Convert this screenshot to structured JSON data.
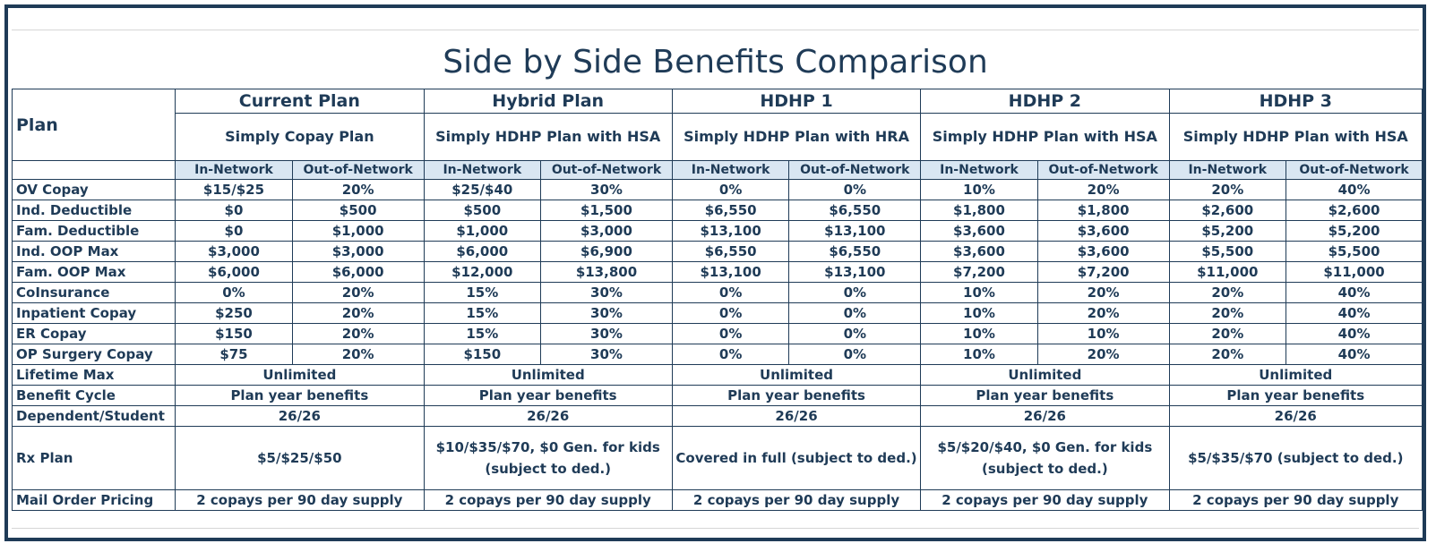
{
  "title": "Side by Side Benefits Comparison",
  "plan_label": "Plan",
  "plans": [
    {
      "name": "Current Plan",
      "sub": "Simply Copay Plan"
    },
    {
      "name": "Hybrid Plan",
      "sub": "Simply HDHP Plan with HSA"
    },
    {
      "name": "HDHP 1",
      "sub": "Simply HDHP Plan with HRA"
    },
    {
      "name": "HDHP 2",
      "sub": "Simply HDHP Plan with HSA"
    },
    {
      "name": "HDHP 3",
      "sub": "Simply HDHP Plan with HSA"
    }
  ],
  "network_labels": {
    "in": "In-Network",
    "out": "Out-of-Network"
  },
  "rows": [
    {
      "label": "OV Copay",
      "values": [
        "$15/$25",
        "20%",
        "$25/$40",
        "30%",
        "0%",
        "0%",
        "10%",
        "20%",
        "20%",
        "40%"
      ]
    },
    {
      "label": "Ind. Deductible",
      "values": [
        "$0",
        "$500",
        "$500",
        "$1,500",
        "$6,550",
        "$6,550",
        "$1,800",
        "$1,800",
        "$2,600",
        "$2,600"
      ]
    },
    {
      "label": "Fam. Deductible",
      "values": [
        "$0",
        "$1,000",
        "$1,000",
        "$3,000",
        "$13,100",
        "$13,100",
        "$3,600",
        "$3,600",
        "$5,200",
        "$5,200"
      ]
    },
    {
      "label": "Ind. OOP Max",
      "values": [
        "$3,000",
        "$3,000",
        "$6,000",
        "$6,900",
        "$6,550",
        "$6,550",
        "$3,600",
        "$3,600",
        "$5,500",
        "$5,500"
      ]
    },
    {
      "label": "Fam. OOP Max",
      "values": [
        "$6,000",
        "$6,000",
        "$12,000",
        "$13,800",
        "$13,100",
        "$13,100",
        "$7,200",
        "$7,200",
        "$11,000",
        "$11,000"
      ]
    },
    {
      "label": "CoInsurance",
      "values": [
        "0%",
        "20%",
        "15%",
        "30%",
        "0%",
        "0%",
        "10%",
        "20%",
        "20%",
        "40%"
      ]
    },
    {
      "label": "Inpatient Copay",
      "values": [
        "$250",
        "20%",
        "15%",
        "30%",
        "0%",
        "0%",
        "10%",
        "20%",
        "20%",
        "40%"
      ]
    },
    {
      "label": "ER Copay",
      "values": [
        "$150",
        "20%",
        "15%",
        "30%",
        "0%",
        "0%",
        "10%",
        "10%",
        "20%",
        "40%"
      ]
    },
    {
      "label": "OP Surgery Copay",
      "values": [
        "$75",
        "20%",
        "$150",
        "30%",
        "0%",
        "0%",
        "10%",
        "20%",
        "20%",
        "40%"
      ]
    }
  ],
  "merged_rows": [
    {
      "label": "Lifetime Max",
      "values": [
        "Unlimited",
        "Unlimited",
        "Unlimited",
        "Unlimited",
        "Unlimited"
      ]
    },
    {
      "label": "Benefit Cycle",
      "values": [
        "Plan year benefits",
        "Plan year benefits",
        "Plan year benefits",
        "Plan year benefits",
        "Plan year benefits"
      ]
    },
    {
      "label": "Dependent/Student",
      "values": [
        "26/26",
        "26/26",
        "26/26",
        "26/26",
        "26/26"
      ]
    }
  ],
  "rx_row": {
    "label": "Rx Plan",
    "values": [
      "$5/$25/$50",
      "$10/$35/$70, $0 Gen. for kids (subject to ded.)",
      "Covered in full  (subject to ded.)",
      "$5/$20/$40, $0 Gen. for kids (subject to ded.)",
      "$5/$35/$70 (subject to ded.)"
    ]
  },
  "mail_row": {
    "label": "Mail Order Pricing",
    "values": [
      "2 copays per 90 day supply",
      "2 copays per 90 day supply",
      "2 copays per 90 day supply",
      "2 copays per 90 day supply",
      "2 copays per 90 day supply"
    ]
  }
}
